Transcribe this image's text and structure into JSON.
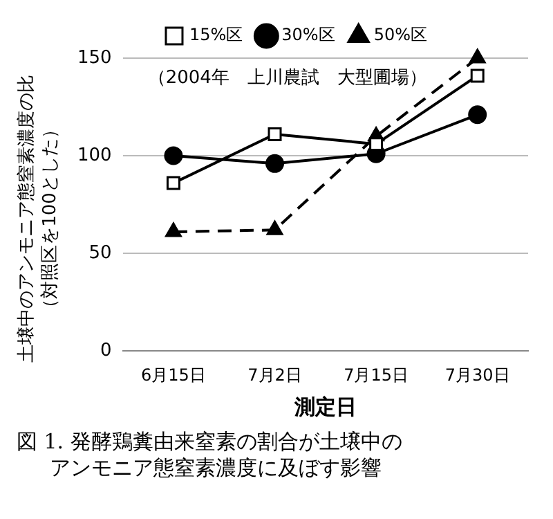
{
  "chart_data": {
    "type": "line",
    "title": "図 1.  発酵鶏糞由来窒素の割合が土壌中のアンモニア態窒素濃度に及ぼす影響",
    "xlabel": "測定日",
    "ylabel": "土壌中のアンモニア態窒素濃度の比（対照区を100とした）",
    "annotations": [
      "（2004年　上川農試　大型圃場）"
    ],
    "categories": [
      "6月15日",
      "7月2日",
      "7月15日",
      "7月30日"
    ],
    "series": [
      {
        "name": "15%区",
        "color": "#000000",
        "values": [
          86,
          111,
          106,
          141
        ],
        "marker": "square",
        "line_style": "solid"
      },
      {
        "name": "30%区",
        "color": "#000000",
        "values": [
          100,
          96,
          101,
          121
        ],
        "marker": "circle",
        "line_style": "solid"
      },
      {
        "name": "50%区",
        "color": "#000000",
        "values": [
          61,
          62,
          110,
          150
        ],
        "marker": "triangle",
        "line_style": "dashed"
      }
    ],
    "ylim": [
      0,
      150
    ],
    "yticks": [
      0,
      50,
      100,
      150
    ],
    "grid": "y",
    "legend": "top"
  }
}
